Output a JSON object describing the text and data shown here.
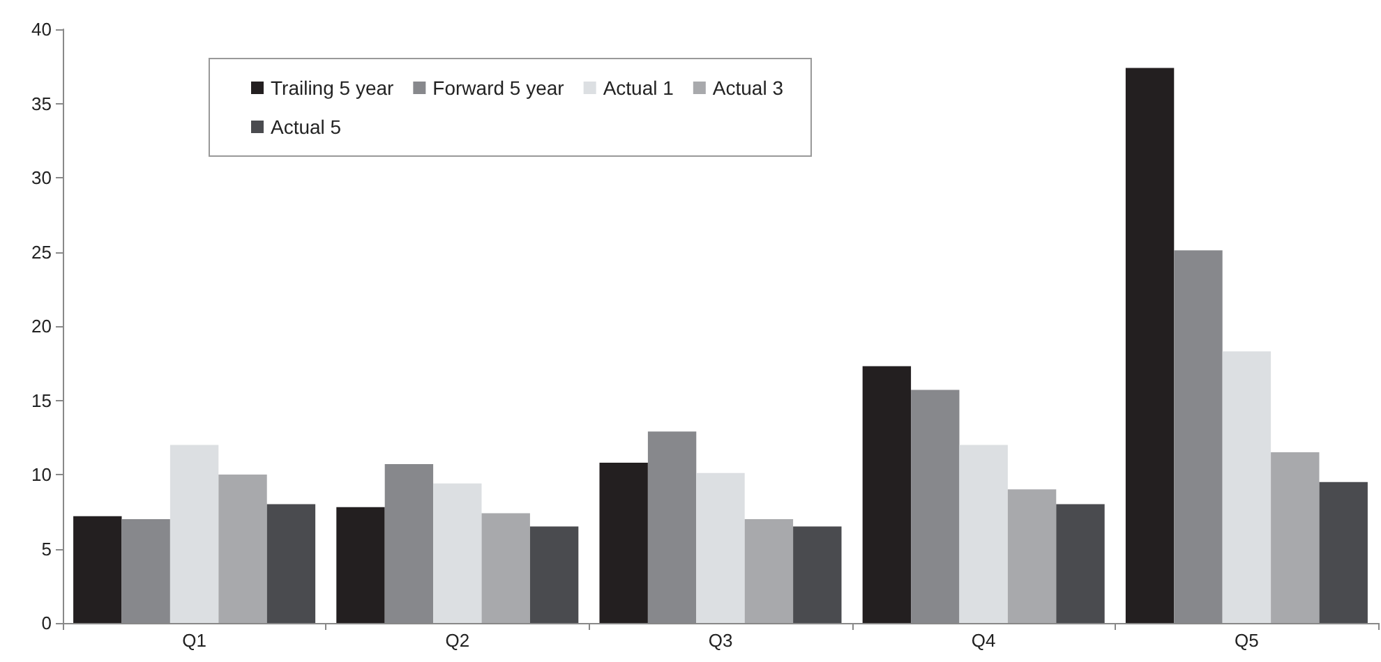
{
  "chart_data": {
    "type": "bar",
    "categories": [
      "Q1",
      "Q2",
      "Q3",
      "Q4",
      "Q5"
    ],
    "series": [
      {
        "name": "Trailing 5 year",
        "color": "#231f20",
        "values": [
          7.2,
          7.8,
          10.8,
          17.3,
          37.4
        ]
      },
      {
        "name": "Forward 5 year",
        "color": "#87888c",
        "values": [
          7.0,
          10.7,
          12.9,
          15.7,
          25.1
        ]
      },
      {
        "name": "Actual 1",
        "color": "#dcdfe2",
        "values": [
          12.0,
          9.4,
          10.1,
          12.0,
          18.3
        ]
      },
      {
        "name": "Actual 3",
        "color": "#a8a9ac",
        "values": [
          10.0,
          7.4,
          7.0,
          9.0,
          11.5
        ]
      },
      {
        "name": "Actual 5",
        "color": "#4a4b4f",
        "values": [
          8.0,
          6.5,
          6.5,
          8.0,
          9.5
        ]
      }
    ],
    "ylim": [
      0,
      40
    ],
    "yticks": [
      0,
      5,
      10,
      15,
      20,
      25,
      30,
      35,
      40
    ],
    "grid": false,
    "legend": "top left"
  }
}
